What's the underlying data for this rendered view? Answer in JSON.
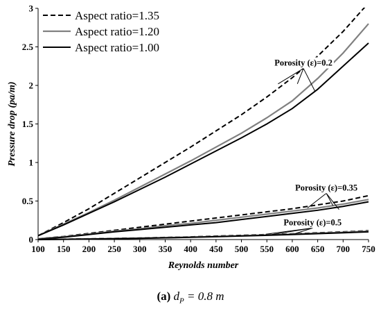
{
  "chart_data": {
    "type": "line",
    "xlabel": "Reynolds number",
    "ylabel": "Pressure drop (pa/m)",
    "xlim": [
      100,
      750
    ],
    "ylim": [
      0,
      3
    ],
    "x_ticks": [
      "100",
      "150",
      "200",
      "250",
      "300",
      "350",
      "400",
      "450",
      "500",
      "550",
      "600",
      "650",
      "700",
      "750"
    ],
    "y_ticks": [
      "0",
      "0.5",
      "1",
      "1.5",
      "2",
      "2.5",
      "3"
    ],
    "grid": false,
    "legend_position": "top-left",
    "legend": [
      {
        "label": "Aspect ratio=1.35",
        "color": "#000000",
        "style": "dashed"
      },
      {
        "label": "Aspect ratio=1.20",
        "color": "#808080",
        "style": "solid"
      },
      {
        "label": "Aspect ratio=1.00",
        "color": "#000000",
        "style": "solid"
      }
    ],
    "x": [
      100,
      150,
      200,
      250,
      300,
      350,
      400,
      450,
      500,
      550,
      600,
      650,
      700,
      750
    ],
    "series": [
      {
        "legend_index": 0,
        "group": "0.2",
        "values": [
          0.05,
          0.22,
          0.4,
          0.6,
          0.8,
          1.0,
          1.2,
          1.41,
          1.62,
          1.85,
          2.1,
          2.38,
          2.7,
          3.07
        ]
      },
      {
        "legend_index": 1,
        "group": "0.2",
        "values": [
          0.05,
          0.2,
          0.35,
          0.51,
          0.68,
          0.85,
          1.02,
          1.2,
          1.38,
          1.58,
          1.8,
          2.09,
          2.42,
          2.8
        ]
      },
      {
        "legend_index": 2,
        "group": "0.2",
        "values": [
          0.05,
          0.19,
          0.34,
          0.49,
          0.65,
          0.81,
          0.98,
          1.15,
          1.32,
          1.5,
          1.7,
          1.95,
          2.25,
          2.55
        ]
      },
      {
        "legend_index": 0,
        "group": "0.35",
        "values": [
          0.01,
          0.04,
          0.08,
          0.12,
          0.16,
          0.2,
          0.24,
          0.28,
          0.32,
          0.36,
          0.4,
          0.45,
          0.5,
          0.57
        ]
      },
      {
        "legend_index": 1,
        "group": "0.35",
        "values": [
          0.01,
          0.035,
          0.07,
          0.11,
          0.14,
          0.18,
          0.21,
          0.25,
          0.29,
          0.33,
          0.37,
          0.41,
          0.46,
          0.52
        ]
      },
      {
        "legend_index": 2,
        "group": "0.35",
        "values": [
          0.005,
          0.03,
          0.065,
          0.1,
          0.13,
          0.16,
          0.19,
          0.22,
          0.26,
          0.3,
          0.34,
          0.38,
          0.43,
          0.49
        ]
      },
      {
        "legend_index": 0,
        "group": "0.5",
        "values": [
          0.0,
          0.005,
          0.01,
          0.015,
          0.02,
          0.028,
          0.035,
          0.045,
          0.055,
          0.065,
          0.075,
          0.088,
          0.1,
          0.115
        ]
      },
      {
        "legend_index": 1,
        "group": "0.5",
        "values": [
          0.0,
          0.004,
          0.008,
          0.013,
          0.018,
          0.025,
          0.032,
          0.04,
          0.05,
          0.06,
          0.07,
          0.082,
          0.094,
          0.108
        ]
      },
      {
        "legend_index": 2,
        "group": "0.5",
        "values": [
          0.0,
          0.003,
          0.007,
          0.011,
          0.016,
          0.022,
          0.029,
          0.037,
          0.046,
          0.055,
          0.065,
          0.077,
          0.088,
          0.1
        ]
      }
    ],
    "annotations": [
      {
        "text": "Porosity (ε)=0.2",
        "label_x": 622,
        "label_y": 2.22,
        "targets": [
          [
            572,
            2.02
          ],
          [
            610,
            2.02
          ],
          [
            645,
            1.92
          ]
        ]
      },
      {
        "text": "Porosity (ε)=0.35",
        "label_x": 667,
        "label_y": 0.6,
        "targets": [
          [
            630,
            0.41
          ],
          [
            680,
            0.44
          ],
          [
            692,
            0.39
          ]
        ]
      },
      {
        "text": "Porosity (ε)=0.5",
        "label_x": 640,
        "label_y": 0.15,
        "targets": [
          [
            548,
            0.07
          ],
          [
            560,
            0.065
          ],
          [
            600,
            0.065
          ]
        ]
      }
    ]
  },
  "caption": {
    "part": "(a)",
    "var": "d",
    "sub": "P",
    "rest": " = 0.8 m"
  }
}
